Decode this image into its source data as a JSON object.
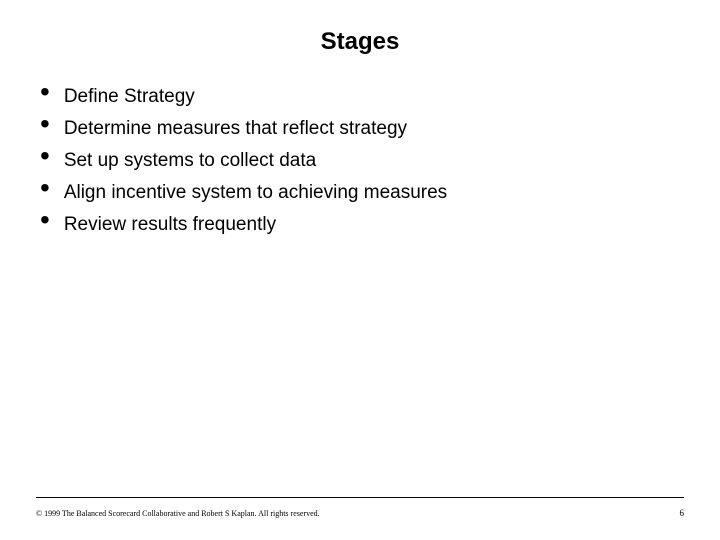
{
  "title": "Stages",
  "bullets": [
    "Define Strategy",
    "Determine measures that reflect strategy",
    "Set up systems to collect data",
    "Align incentive system to achieving measures",
    "Review results frequently"
  ],
  "copyright": "© 1999 The Balanced Scorecard Collaborative and Robert S Kaplan. All rights reserved.",
  "page_number": "6",
  "colors": {
    "background": "#ffffff",
    "text": "#000000",
    "line": "#000000"
  },
  "typography": {
    "title_fontsize": 24,
    "title_weight": "bold",
    "bullet_fontsize": 19,
    "footer_fontsize": 8
  }
}
